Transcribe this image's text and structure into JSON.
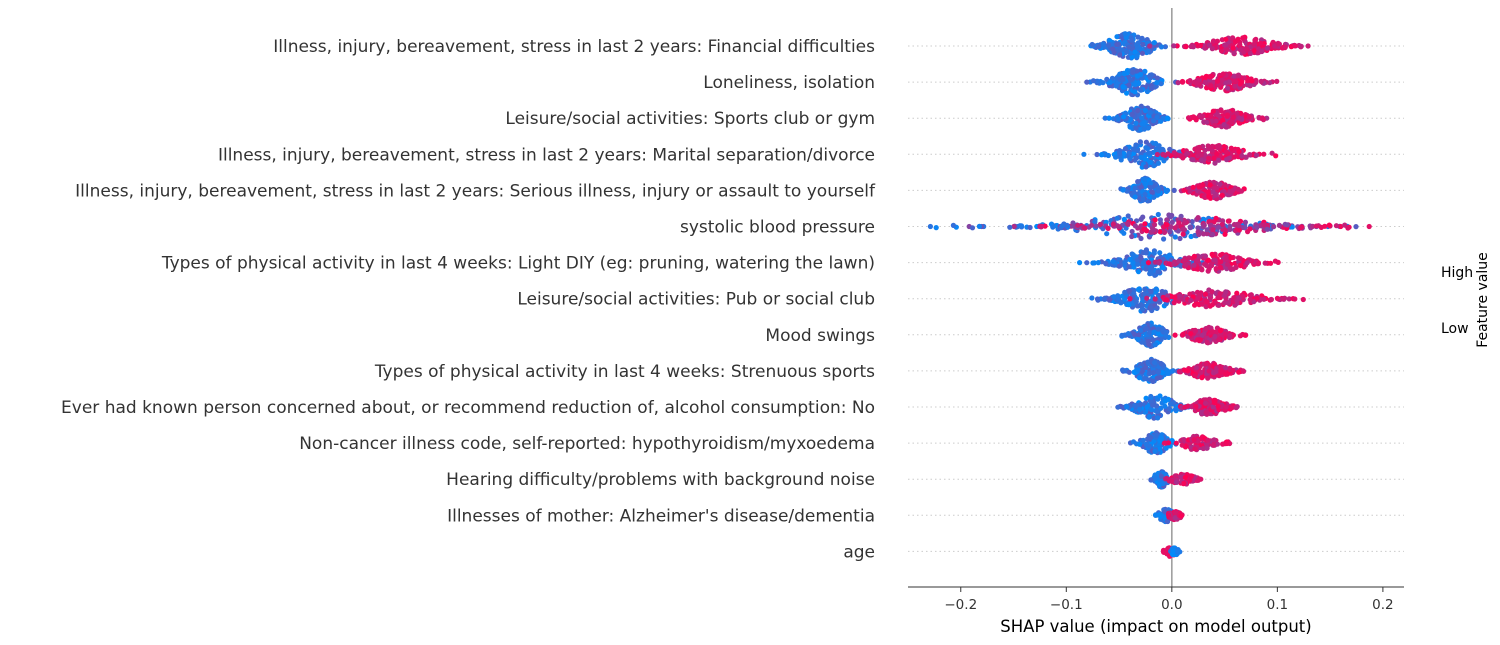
{
  "chart_data": {
    "type": "scatter",
    "subtype": "shap-beeswarm-summary",
    "xlabel": "SHAP value (impact on model output)",
    "xlim": [
      -0.25,
      0.22
    ],
    "xticks": [
      -0.2,
      -0.1,
      0.0,
      0.1,
      0.2
    ],
    "xtick_labels": [
      "−0.2",
      "−0.1",
      "0.0",
      "0.1",
      "0.2"
    ],
    "zero_line": 0.0,
    "colorbar": {
      "title": "Feature value",
      "high_label": "High",
      "low_label": "Low",
      "high_color": "#ff0052",
      "low_color": "#008bfb"
    },
    "features": [
      {
        "name": "Illness, injury, bereavement, stress in last 2 years: Financial difficulties",
        "neg_min": -0.09,
        "neg_center": -0.04,
        "pos_center": 0.065,
        "pos_max": 0.13,
        "density": 1.0,
        "diverse": false
      },
      {
        "name": "Loneliness, isolation",
        "neg_min": -0.085,
        "neg_center": -0.035,
        "pos_center": 0.05,
        "pos_max": 0.1,
        "density": 0.95,
        "diverse": false
      },
      {
        "name": "Leisure/social activities: Sports club or gym",
        "neg_min": -0.065,
        "neg_center": -0.03,
        "pos_center": 0.05,
        "pos_max": 0.09,
        "density": 0.9,
        "diverse": false
      },
      {
        "name": "Illness, injury, bereavement, stress in last 2 years: Marital separation/divorce",
        "neg_min": -0.085,
        "neg_center": -0.025,
        "pos_center": 0.04,
        "pos_max": 0.1,
        "density": 0.8,
        "diverse": false
      },
      {
        "name": "Illness, injury, bereavement, stress in last 2 years: Serious illness, injury or assault to yourself",
        "neg_min": -0.05,
        "neg_center": -0.025,
        "pos_center": 0.04,
        "pos_max": 0.075,
        "density": 0.75,
        "diverse": false
      },
      {
        "name": "systolic blood pressure",
        "neg_min": -0.23,
        "neg_center": -0.01,
        "pos_center": 0.02,
        "pos_max": 0.195,
        "density": 1.0,
        "diverse": true
      },
      {
        "name": "Types of physical activity in last 4 weeks: Light DIY (eg: pruning, watering the lawn)",
        "neg_min": -0.09,
        "neg_center": -0.02,
        "pos_center": 0.04,
        "pos_max": 0.105,
        "density": 0.85,
        "diverse": false
      },
      {
        "name": "Leisure/social activities: Pub or social club",
        "neg_min": -0.08,
        "neg_center": -0.025,
        "pos_center": 0.04,
        "pos_max": 0.125,
        "density": 0.85,
        "diverse": false
      },
      {
        "name": "Mood swings",
        "neg_min": -0.05,
        "neg_center": -0.02,
        "pos_center": 0.035,
        "pos_max": 0.07,
        "density": 0.7,
        "diverse": false
      },
      {
        "name": "Types of physical activity in last 4 weeks: Strenuous sports",
        "neg_min": -0.05,
        "neg_center": -0.02,
        "pos_center": 0.035,
        "pos_max": 0.07,
        "density": 0.7,
        "diverse": false
      },
      {
        "name": "Ever had known person concerned about, or recommend reduction of, alcohol consumption: No",
        "neg_min": -0.06,
        "neg_center": -0.015,
        "pos_center": 0.035,
        "pos_max": 0.065,
        "density": 0.7,
        "diverse": false
      },
      {
        "name": "Non-cancer illness code, self-reported: hypothyroidism/myxoedema",
        "neg_min": -0.04,
        "neg_center": -0.015,
        "pos_center": 0.025,
        "pos_max": 0.055,
        "density": 0.6,
        "diverse": false
      },
      {
        "name": "Hearing difficulty/problems with background noise",
        "neg_min": -0.02,
        "neg_center": -0.01,
        "pos_center": 0.01,
        "pos_max": 0.03,
        "density": 0.4,
        "diverse": false
      },
      {
        "name": "Illnesses of mother: Alzheimer's disease/dementia",
        "neg_min": -0.02,
        "neg_center": -0.005,
        "pos_center": 0.003,
        "pos_max": 0.01,
        "density": 0.3,
        "diverse": false
      },
      {
        "name": "age",
        "neg_min": -0.008,
        "neg_center": -0.002,
        "pos_center": 0.003,
        "pos_max": 0.008,
        "density": 0.2,
        "diverse": false,
        "reversed": true
      }
    ]
  }
}
